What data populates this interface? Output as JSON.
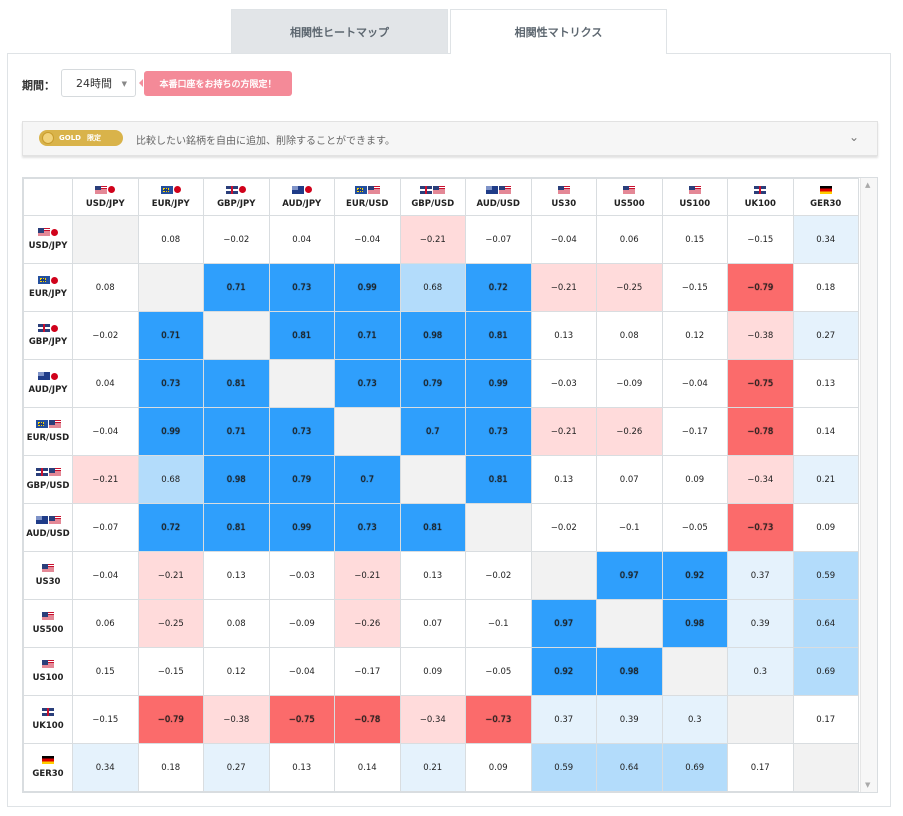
{
  "tabs": [
    {
      "label": "相関性ヒートマップ"
    },
    {
      "label": "相関性マトリクス"
    }
  ],
  "period": {
    "label": "期間：",
    "selected": "24時間"
  },
  "gold_badge": {
    "label": "本番口座をお持ちの方限定！"
  },
  "notice": {
    "gold": "GOLD",
    "limited": "限定",
    "text": "比較したい銘柄を自由に追加、削除することができます。"
  },
  "symbols": [
    {
      "label": "USD/JPY",
      "flags": [
        "us",
        "jp"
      ]
    },
    {
      "label": "EUR/JPY",
      "flags": [
        "eu",
        "jp"
      ]
    },
    {
      "label": "GBP/JPY",
      "flags": [
        "uk",
        "jp"
      ]
    },
    {
      "label": "AUD/JPY",
      "flags": [
        "au",
        "jp"
      ]
    },
    {
      "label": "EUR/USD",
      "flags": [
        "eu",
        "us"
      ]
    },
    {
      "label": "GBP/USD",
      "flags": [
        "uk",
        "us"
      ]
    },
    {
      "label": "AUD/USD",
      "flags": [
        "au",
        "us"
      ]
    },
    {
      "label": "US30",
      "flags": [
        "us"
      ]
    },
    {
      "label": "US500",
      "flags": [
        "us"
      ]
    },
    {
      "label": "US100",
      "flags": [
        "us"
      ]
    },
    {
      "label": "UK100",
      "flags": [
        "uk"
      ]
    },
    {
      "label": "GER30",
      "flags": [
        "de"
      ]
    }
  ],
  "matrix": [
    [
      null,
      "0.08",
      "−0.02",
      "0.04",
      "−0.04",
      "−0.21",
      "−0.07",
      "−0.04",
      "0.06",
      "0.15",
      "−0.15",
      "0.34"
    ],
    [
      "0.08",
      null,
      "0.71",
      "0.73",
      "0.99",
      "0.68",
      "0.72",
      "−0.21",
      "−0.25",
      "−0.15",
      "−0.79",
      "0.18"
    ],
    [
      "−0.02",
      "0.71",
      null,
      "0.81",
      "0.71",
      "0.98",
      "0.81",
      "0.13",
      "0.08",
      "0.12",
      "−0.38",
      "0.27"
    ],
    [
      "0.04",
      "0.73",
      "0.81",
      null,
      "0.73",
      "0.79",
      "0.99",
      "−0.03",
      "−0.09",
      "−0.04",
      "−0.75",
      "0.13"
    ],
    [
      "−0.04",
      "0.99",
      "0.71",
      "0.73",
      null,
      "0.7",
      "0.73",
      "−0.21",
      "−0.26",
      "−0.17",
      "−0.78",
      "0.14"
    ],
    [
      "−0.21",
      "0.68",
      "0.98",
      "0.79",
      "0.7",
      null,
      "0.81",
      "0.13",
      "0.07",
      "0.09",
      "−0.34",
      "0.21"
    ],
    [
      "−0.07",
      "0.72",
      "0.81",
      "0.99",
      "0.73",
      "0.81",
      null,
      "−0.02",
      "−0.1",
      "−0.05",
      "−0.73",
      "0.09"
    ],
    [
      "−0.04",
      "−0.21",
      "0.13",
      "−0.03",
      "−0.21",
      "0.13",
      "−0.02",
      null,
      "0.97",
      "0.92",
      "0.37",
      "0.59"
    ],
    [
      "0.06",
      "−0.25",
      "0.08",
      "−0.09",
      "−0.26",
      "0.07",
      "−0.1",
      "0.97",
      null,
      "0.98",
      "0.39",
      "0.64"
    ],
    [
      "0.15",
      "−0.15",
      "0.12",
      "−0.04",
      "−0.17",
      "0.09",
      "−0.05",
      "0.92",
      "0.98",
      null,
      "0.3",
      "0.69"
    ],
    [
      "−0.15",
      "−0.79",
      "−0.38",
      "−0.75",
      "−0.78",
      "−0.34",
      "−0.73",
      "0.37",
      "0.39",
      "0.3",
      null,
      "0.17"
    ],
    [
      "0.34",
      "0.18",
      "0.27",
      "0.13",
      "0.14",
      "0.21",
      "0.09",
      "0.59",
      "0.64",
      "0.69",
      "0.17",
      null
    ]
  ],
  "colors": {
    "strong_positive": "#2f9ffc",
    "medium_positive": "#b3dcfb",
    "weak_positive": "#e5f2fc",
    "strong_negative": "#fb6b6b",
    "weak_negative": "#ffdbdb",
    "badge": "#f48a98",
    "gold": "#d9b34a"
  }
}
